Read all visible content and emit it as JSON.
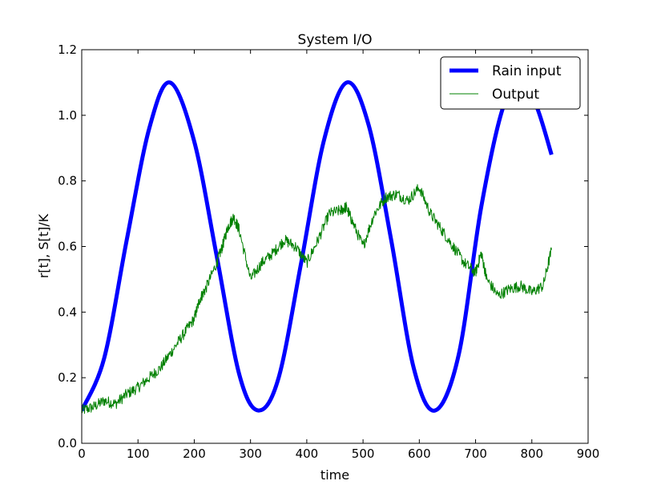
{
  "chart_data": {
    "type": "line",
    "title": "System I/O",
    "xlabel": "time",
    "ylabel": "r[t], S[t]/K",
    "xlim": [
      0,
      900
    ],
    "ylim": [
      0.0,
      1.2
    ],
    "xticks": [
      "0",
      "100",
      "200",
      "300",
      "400",
      "500",
      "600",
      "700",
      "800",
      "900"
    ],
    "yticks": [
      "0.0",
      "0.2",
      "0.4",
      "0.6",
      "0.8",
      "1.0",
      "1.2"
    ],
    "grid": false,
    "legend_position": "top-right",
    "series": [
      {
        "name": "Rain input",
        "color": "#0000ff",
        "style": "thick",
        "x": [
          0,
          40,
          80,
          120,
          157,
          200,
          240,
          280,
          314,
          350,
          390,
          430,
          471,
          510,
          550,
          590,
          628,
          670,
          710,
          750,
          785,
          810,
          835
        ],
        "y": [
          0.1,
          0.26,
          0.62,
          0.96,
          1.1,
          0.92,
          0.57,
          0.21,
          0.1,
          0.2,
          0.55,
          0.92,
          1.1,
          0.97,
          0.62,
          0.23,
          0.1,
          0.27,
          0.72,
          1.03,
          1.1,
          1.02,
          0.88
        ]
      },
      {
        "name": "Output",
        "color": "#008000",
        "style": "thin",
        "x": [
          0,
          20,
          40,
          60,
          80,
          100,
          120,
          140,
          160,
          180,
          200,
          210,
          220,
          240,
          250,
          260,
          270,
          280,
          300,
          320,
          340,
          360,
          380,
          400,
          420,
          440,
          460,
          470,
          480,
          500,
          520,
          540,
          560,
          580,
          600,
          620,
          640,
          660,
          680,
          700,
          710,
          720,
          740,
          760,
          780,
          800,
          820,
          835
        ],
        "y": [
          0.1,
          0.11,
          0.13,
          0.12,
          0.15,
          0.17,
          0.2,
          0.23,
          0.28,
          0.33,
          0.38,
          0.44,
          0.47,
          0.55,
          0.6,
          0.66,
          0.69,
          0.65,
          0.5,
          0.55,
          0.58,
          0.62,
          0.6,
          0.55,
          0.62,
          0.7,
          0.71,
          0.72,
          0.68,
          0.6,
          0.7,
          0.75,
          0.76,
          0.74,
          0.78,
          0.7,
          0.65,
          0.6,
          0.55,
          0.52,
          0.58,
          0.5,
          0.45,
          0.47,
          0.48,
          0.46,
          0.48,
          0.59
        ]
      }
    ]
  }
}
